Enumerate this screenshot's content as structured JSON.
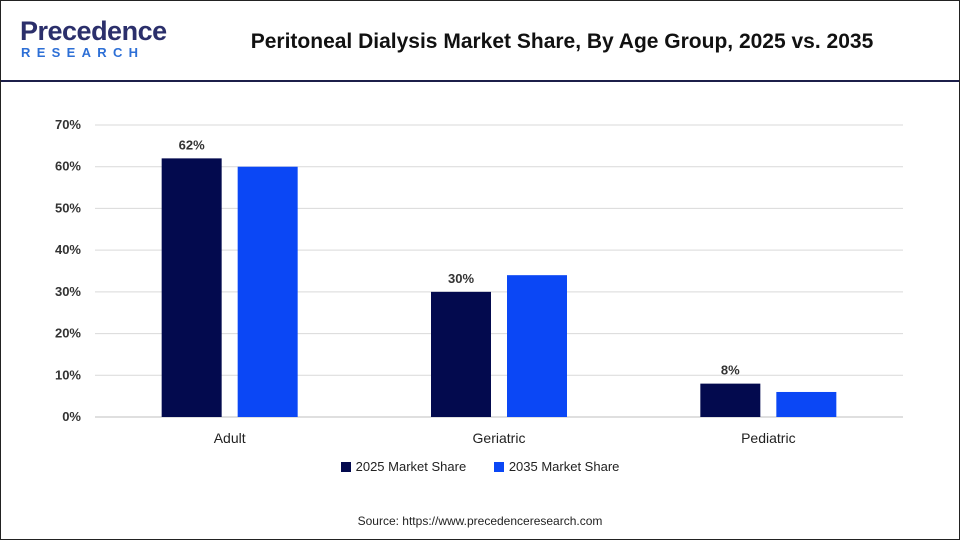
{
  "logo": {
    "line1": "Precedence",
    "line2": "RESEARCH"
  },
  "title": "Peritoneal Dialysis Market Share, By Age Group, 2025 vs. 2035",
  "source": "Source: https://www.precedenceresearch.com",
  "colors": {
    "series_2025": "#030a4e",
    "series_2035": "#0b47f5",
    "grid": "#d9d9d9",
    "header_rule": "#1c1f4a"
  },
  "chart_data": {
    "type": "bar",
    "title": "Peritoneal Dialysis Market Share, By Age Group, 2025 vs. 2035",
    "xlabel": "",
    "ylabel": "",
    "categories": [
      "Adult",
      "Geriatric",
      "Pediatric"
    ],
    "ylim": [
      0,
      70
    ],
    "yticks": [
      "0%",
      "10%",
      "20%",
      "30%",
      "40%",
      "50%",
      "60%",
      "70%"
    ],
    "grid": true,
    "legend_position": "bottom",
    "series": [
      {
        "name": "2025 Market Share",
        "values": [
          62,
          30,
          8
        ],
        "data_labels": [
          "62%",
          "30%",
          "8%"
        ]
      },
      {
        "name": "2035 Market Share",
        "values": [
          60,
          34,
          6
        ],
        "data_labels": [
          "",
          "",
          ""
        ]
      }
    ]
  }
}
